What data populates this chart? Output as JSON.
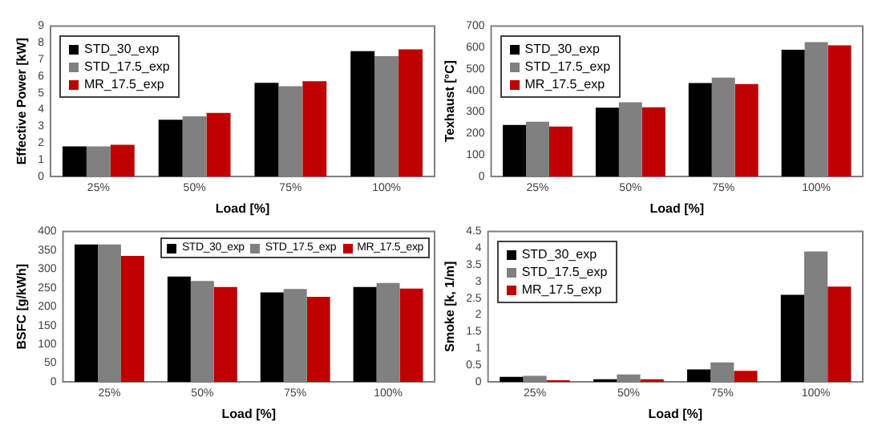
{
  "chart_data": [
    {
      "type": "bar",
      "xlabel": "Load [%]",
      "ylabel": "Effective Power [kW]",
      "categories": [
        "25%",
        "50%",
        "75%",
        "100%"
      ],
      "series": [
        {
          "name": "STD_30_exp",
          "color": "#000000",
          "values": [
            1.8,
            3.4,
            5.6,
            7.5
          ]
        },
        {
          "name": "STD_17.5_exp",
          "color": "#808080",
          "values": [
            1.8,
            3.6,
            5.4,
            7.2
          ]
        },
        {
          "name": "MR_17.5_exp",
          "color": "#c00000",
          "values": [
            1.9,
            3.8,
            5.7,
            7.6
          ]
        }
      ],
      "ylim": [
        0,
        9
      ],
      "yticks": [
        0,
        1,
        2,
        3,
        4,
        5,
        6,
        7,
        8,
        9
      ],
      "legend": "top left"
    },
    {
      "type": "bar",
      "xlabel": "Load [%]",
      "ylabel": "Texhaust [°C]",
      "categories": [
        "25%",
        "50%",
        "75%",
        "100%"
      ],
      "series": [
        {
          "name": "STD_30_exp",
          "color": "#000000",
          "values": [
            240,
            320,
            435,
            590
          ]
        },
        {
          "name": "STD_17.5_exp",
          "color": "#808080",
          "values": [
            255,
            345,
            460,
            625
          ]
        },
        {
          "name": "MR_17.5_exp",
          "color": "#c00000",
          "values": [
            232,
            322,
            430,
            610
          ]
        }
      ],
      "ylim": [
        0,
        700
      ],
      "yticks": [
        0,
        100,
        200,
        300,
        400,
        500,
        600,
        700
      ],
      "legend": "top left"
    },
    {
      "type": "bar",
      "xlabel": "Load [%]",
      "ylabel": "BSFC [g/kWh]",
      "categories": [
        "25%",
        "50%",
        "75%",
        "100%"
      ],
      "series": [
        {
          "name": "STD_30_exp",
          "color": "#000000",
          "values": [
            365,
            280,
            238,
            252
          ]
        },
        {
          "name": "STD_17.5_exp",
          "color": "#808080",
          "values": [
            365,
            268,
            247,
            263
          ]
        },
        {
          "name": "MR_17.5_exp",
          "color": "#c00000",
          "values": [
            335,
            252,
            226,
            248
          ]
        }
      ],
      "ylim": [
        0,
        400
      ],
      "yticks": [
        0,
        50,
        100,
        150,
        200,
        250,
        300,
        350,
        400
      ],
      "legend": "top right"
    },
    {
      "type": "bar",
      "xlabel": "Load [%]",
      "ylabel": "Smoke [k, 1/m]",
      "categories": [
        "25%",
        "50%",
        "75%",
        "100%"
      ],
      "series": [
        {
          "name": "STD_30_exp",
          "color": "#000000",
          "values": [
            0.15,
            0.08,
            0.37,
            2.6
          ]
        },
        {
          "name": "STD_17.5_exp",
          "color": "#808080",
          "values": [
            0.18,
            0.22,
            0.58,
            3.9
          ]
        },
        {
          "name": "MR_17.5_exp",
          "color": "#c00000",
          "values": [
            0.05,
            0.08,
            0.33,
            2.85
          ]
        }
      ],
      "ylim": [
        0,
        4.5
      ],
      "yticks": [
        0,
        0.5,
        1,
        1.5,
        2,
        2.5,
        3,
        3.5,
        4,
        4.5
      ],
      "legend": "top left"
    }
  ]
}
